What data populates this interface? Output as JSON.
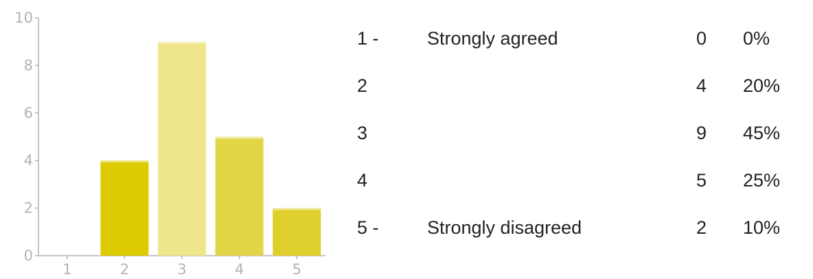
{
  "chart_data": {
    "type": "bar",
    "categories": [
      "1",
      "2",
      "3",
      "4",
      "5"
    ],
    "values": [
      0,
      4,
      9,
      5,
      2
    ],
    "colors": [
      "#dccb00",
      "#dccb00",
      "#efe68c",
      "#e2d548",
      "#dfcf2c"
    ],
    "ylim": [
      0,
      10
    ],
    "yticks": [
      "0",
      "2",
      "4",
      "6",
      "8",
      "10"
    ],
    "xticks": [
      "1",
      "2",
      "3",
      "4",
      "5"
    ],
    "axis_color": "#b3b3b3",
    "grid": false
  },
  "summary": [
    {
      "num": "1 -",
      "text": "Strongly agreed",
      "count": "0",
      "pct": "0%"
    },
    {
      "num": "2",
      "text": "",
      "count": "4",
      "pct": "20%"
    },
    {
      "num": "3",
      "text": "",
      "count": "9",
      "pct": "45%"
    },
    {
      "num": "4",
      "text": "",
      "count": "5",
      "pct": "25%"
    },
    {
      "num": "5 -",
      "text": "Strongly disagreed",
      "count": "2",
      "pct": "10%"
    }
  ]
}
